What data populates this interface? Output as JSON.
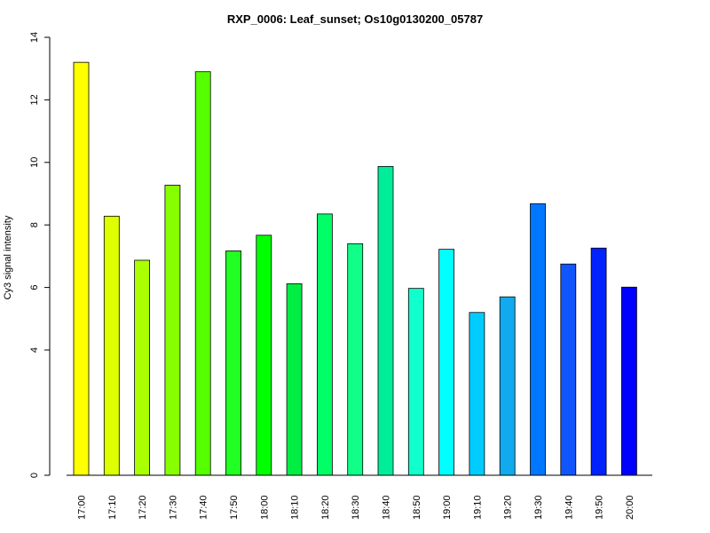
{
  "chart_data": {
    "type": "bar",
    "title": "RXP_0006: Leaf_sunset; Os10g0130200_05787",
    "xlabel": "",
    "ylabel": "Cy3 signal intensity",
    "y_ticks": [
      0,
      4,
      6,
      8,
      10,
      12,
      14
    ],
    "ylim": [
      0,
      14
    ],
    "y_scale": "non-linear (compressed below 4)",
    "grid": false,
    "legend": "none",
    "categories": [
      "17:00",
      "17:10",
      "17:20",
      "17:30",
      "17:40",
      "17:50",
      "18:00",
      "18:10",
      "18:20",
      "18:30",
      "18:40",
      "18:50",
      "19:00",
      "19:10",
      "19:20",
      "19:30",
      "19:40",
      "19:50",
      "20:00"
    ],
    "values": [
      13.2,
      8.28,
      6.87,
      9.27,
      12.9,
      7.17,
      7.67,
      6.12,
      8.35,
      7.4,
      9.87,
      5.97,
      7.22,
      5.2,
      5.7,
      8.68,
      6.75,
      7.26,
      6.01
    ],
    "colors": [
      "#FFFF00",
      "#DDFF00",
      "#AAFF00",
      "#88FF00",
      "#55FF00",
      "#22FF22",
      "#00FF00",
      "#00EE44",
      "#00FF66",
      "#11FF88",
      "#00EE99",
      "#11FFCC",
      "#00FFFF",
      "#00CCFF",
      "#11AAEE",
      "#0077FF",
      "#1155FF",
      "#0022FF",
      "#0000FF"
    ]
  }
}
